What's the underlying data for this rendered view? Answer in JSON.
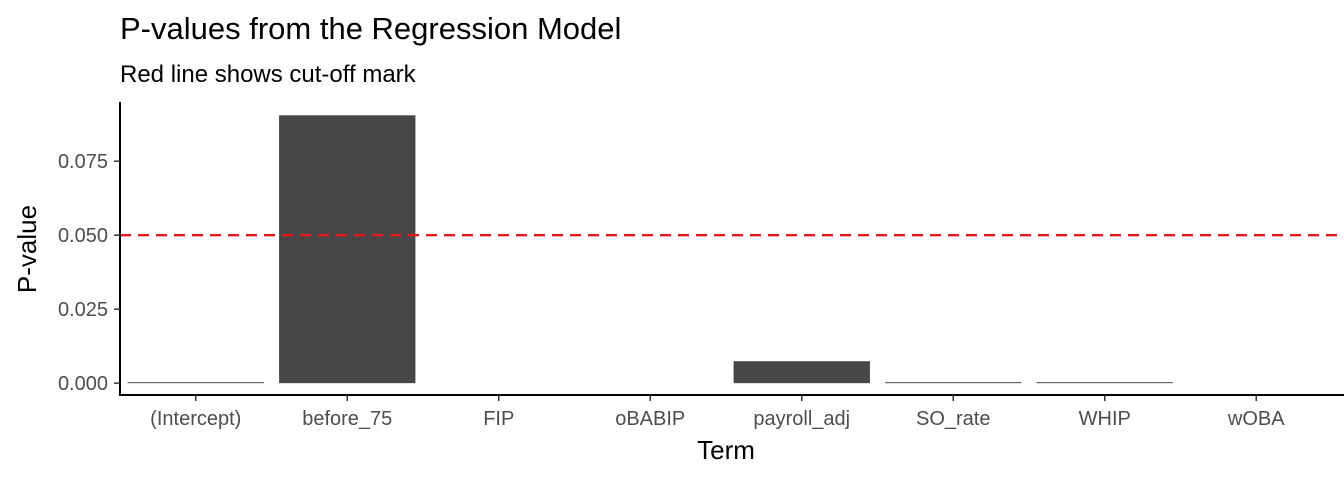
{
  "chart_data": {
    "type": "bar",
    "title": "P-values from the Regression Model",
    "subtitle": "Red line shows cut-off mark",
    "xlabel": "Term",
    "ylabel": "P-value",
    "categories": [
      "(Intercept)",
      "before_75",
      "FIP",
      "oBABIP",
      "payroll_adj",
      "SO_rate",
      "WHIP",
      "wOBA"
    ],
    "values": [
      0.0002,
      0.0905,
      0.0,
      0.0,
      0.0074,
      0.0003,
      0.0003,
      0.0
    ],
    "ylim": [
      -0.004,
      0.095
    ],
    "yticks": [
      "0.000",
      "0.025",
      "0.050",
      "0.075"
    ],
    "cutoff": {
      "value": 0.05,
      "color": "#e41a1c",
      "style": "dashed"
    },
    "bar_color": "#474747",
    "grid": false,
    "legend": "none"
  }
}
